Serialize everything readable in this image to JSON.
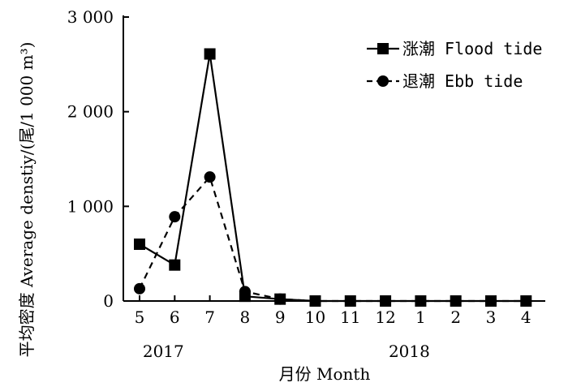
{
  "chart_data": {
    "type": "line",
    "title": "",
    "xlabel": "月份 Month",
    "ylabel": "平均密度 Average denstiy/(尾/1 000 m³)",
    "x_categories": [
      "5",
      "6",
      "7",
      "8",
      "9",
      "10",
      "11",
      "12",
      "1",
      "2",
      "3",
      "4"
    ],
    "year_labels": [
      {
        "label": "2017",
        "under_category": "6"
      },
      {
        "label": "2018",
        "under_category": "1"
      }
    ],
    "ylim": [
      0,
      3000
    ],
    "y_ticks": [
      {
        "value": 0,
        "label": "0"
      },
      {
        "value": 1000,
        "label": "1 000"
      },
      {
        "value": 2000,
        "label": "2 000"
      },
      {
        "value": 3000,
        "label": "3 000"
      }
    ],
    "grid": false,
    "legend_position": "top-right",
    "series": [
      {
        "name": "涨潮 Flood tide",
        "marker": "square",
        "line_style": "solid",
        "values": [
          600,
          380,
          2610,
          50,
          20,
          0,
          0,
          0,
          0,
          0,
          0,
          0
        ]
      },
      {
        "name": "退潮 Ebb tide",
        "marker": "circle",
        "line_style": "dashed",
        "values": [
          130,
          890,
          1310,
          100,
          20,
          0,
          0,
          0,
          0,
          0,
          0,
          0
        ]
      }
    ],
    "colors": {
      "series": "#000000"
    }
  }
}
